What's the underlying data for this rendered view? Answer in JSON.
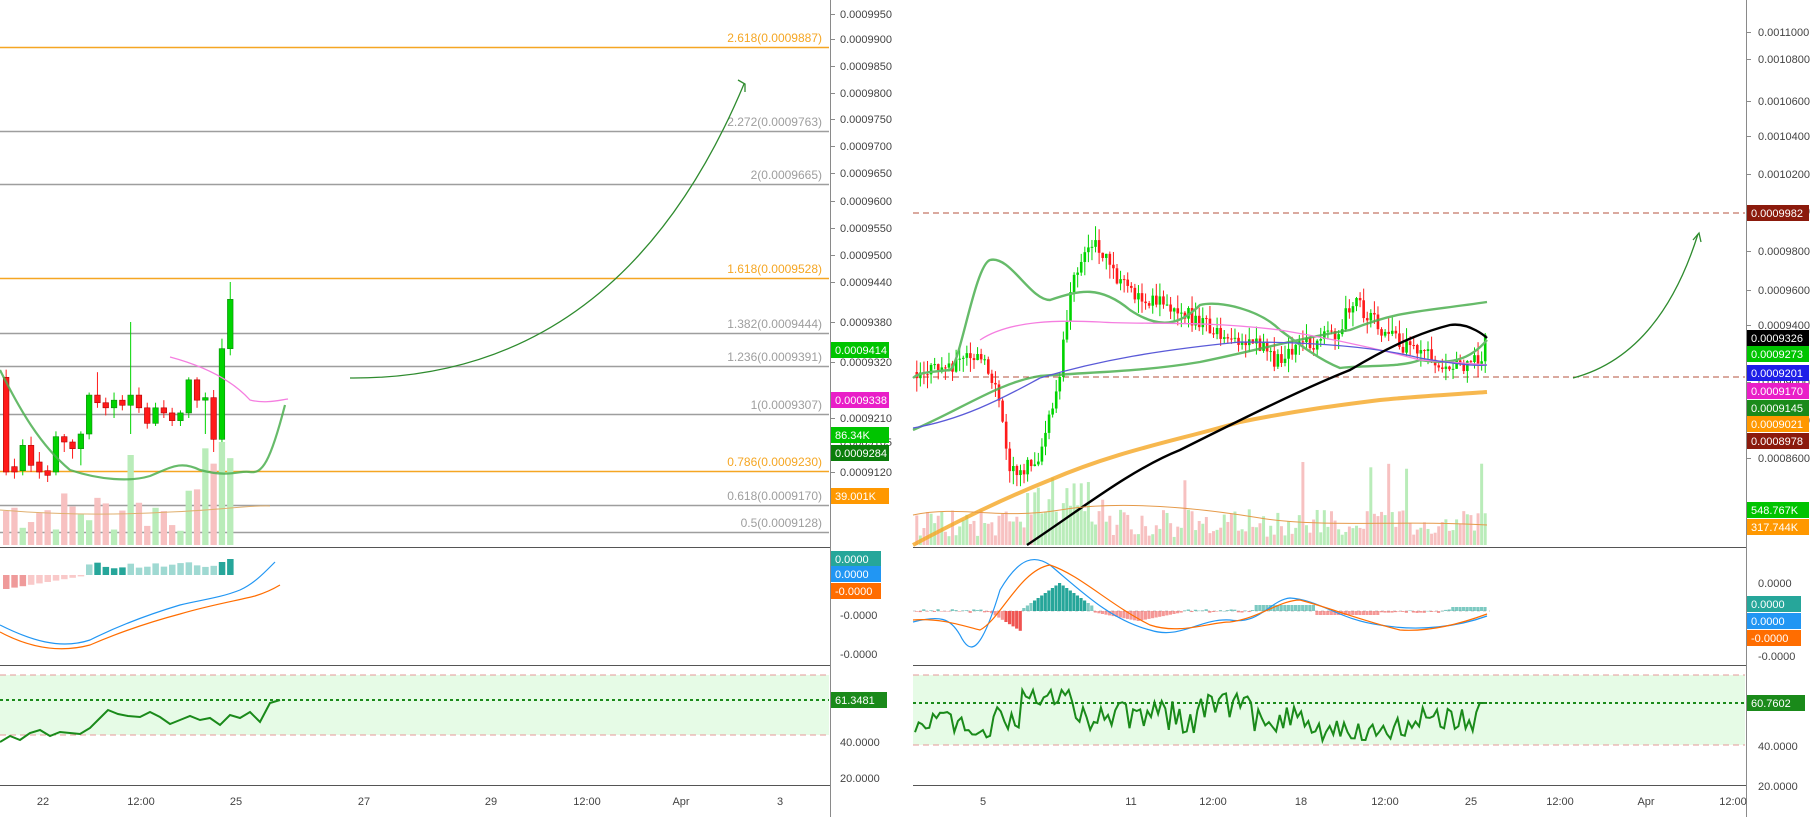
{
  "chart_data": [
    {
      "type": "candlestick",
      "panel": "left",
      "x_ticks": [
        "22",
        "12:00",
        "25",
        "27",
        "29",
        "12:00",
        "Apr",
        "3"
      ],
      "price_ticks": [
        "0.0009950",
        "0.0009900",
        "0.0009850",
        "0.0009800",
        "0.0009750",
        "0.0009700",
        "0.0009650",
        "0.0009600",
        "0.0009550",
        "0.0009500",
        "0.0009440",
        "0.0009380",
        "0.0009320",
        "0.0009210",
        "0.0009165",
        "0.0009120"
      ],
      "fib_levels": [
        {
          "label": "2.618(0.0009887)",
          "ratio": 2.618,
          "value": 0.0009887,
          "color": "#f5a623"
        },
        {
          "label": "2.272(0.0009763)",
          "ratio": 2.272,
          "value": 0.0009763,
          "color": "#9e9e9e"
        },
        {
          "label": "2(0.0009665)",
          "ratio": 2,
          "value": 0.0009665,
          "color": "#9e9e9e"
        },
        {
          "label": "1.618(0.0009528)",
          "ratio": 1.618,
          "value": 0.0009528,
          "color": "#f5a623"
        },
        {
          "label": "1.382(0.0009444)",
          "ratio": 1.382,
          "value": 0.0009444,
          "color": "#9e9e9e"
        },
        {
          "label": "1.236(0.0009391)",
          "ratio": 1.236,
          "value": 0.0009391,
          "color": "#9e9e9e"
        },
        {
          "label": "1(0.0009307)",
          "ratio": 1,
          "value": 0.0009307,
          "color": "#9e9e9e"
        },
        {
          "label": "0.786(0.0009230)",
          "ratio": 0.786,
          "value": 0.000923,
          "color": "#f5a623"
        },
        {
          "label": "0.618(0.0009170)",
          "ratio": 0.618,
          "value": 0.000917,
          "color": "#9e9e9e"
        },
        {
          "label": "0.5(0.0009128)",
          "ratio": 0.5,
          "value": 0.0009128,
          "color": "#9e9e9e"
        }
      ],
      "price_badges": [
        {
          "text": "0.0009414",
          "color": "#00c400"
        },
        {
          "text": "0.0009338",
          "color": "#e91ec8"
        },
        {
          "text": "86.34K",
          "color": "#00c400"
        },
        {
          "text": "0.0009284",
          "color": "#0a7d0a"
        },
        {
          "text": "39.001K",
          "color": "#ff9800"
        }
      ],
      "macd": {
        "ticks": [
          "-0.0000",
          "-0.0000"
        ],
        "badges": [
          {
            "text": "0.0000",
            "color": "#26a69a"
          },
          {
            "text": "0.0000",
            "color": "#2196f3"
          },
          {
            "text": "-0.0000",
            "color": "#ff6d00"
          }
        ]
      },
      "rsi": {
        "ticks": [
          "40.0000",
          "20.0000"
        ],
        "value_badge": {
          "text": "61.3481",
          "color": "#1a8a1a"
        }
      },
      "candles": [
        {
          "o": 0.000929,
          "h": 0.0009305,
          "l": 0.0009115,
          "c": 0.000912
        },
        {
          "o": 0.0009128,
          "h": 0.000914,
          "l": 0.000911,
          "c": 0.000912
        },
        {
          "o": 0.0009122,
          "h": 0.000917,
          "l": 0.0009115,
          "c": 0.000916
        },
        {
          "o": 0.000916,
          "h": 0.0009175,
          "l": 0.000912,
          "c": 0.000913
        },
        {
          "o": 0.0009135,
          "h": 0.000915,
          "l": 0.000911,
          "c": 0.000912
        },
        {
          "o": 0.0009122,
          "h": 0.000913,
          "l": 0.0009105,
          "c": 0.0009115
        },
        {
          "o": 0.000912,
          "h": 0.0009185,
          "l": 0.0009115,
          "c": 0.0009175
        },
        {
          "o": 0.0009175,
          "h": 0.000918,
          "l": 0.000915,
          "c": 0.0009165
        },
        {
          "o": 0.0009165,
          "h": 0.000917,
          "l": 0.000914,
          "c": 0.0009155
        },
        {
          "o": 0.0009155,
          "h": 0.0009185,
          "l": 0.000913,
          "c": 0.000918
        },
        {
          "o": 0.000918,
          "h": 0.000926,
          "l": 0.000917,
          "c": 0.0009255
        },
        {
          "o": 0.0009255,
          "h": 0.00093,
          "l": 0.000923,
          "c": 0.000924
        },
        {
          "o": 0.000924,
          "h": 0.000925,
          "l": 0.0009215,
          "c": 0.000923
        },
        {
          "o": 0.000923,
          "h": 0.000926,
          "l": 0.000921,
          "c": 0.0009245
        },
        {
          "o": 0.0009245,
          "h": 0.0009255,
          "l": 0.0009225,
          "c": 0.0009235
        },
        {
          "o": 0.0009235,
          "h": 0.000938,
          "l": 0.000918,
          "c": 0.0009255
        },
        {
          "o": 0.0009255,
          "h": 0.000927,
          "l": 0.000922,
          "c": 0.000923
        },
        {
          "o": 0.000923,
          "h": 0.000924,
          "l": 0.000919,
          "c": 0.00092
        },
        {
          "o": 0.00092,
          "h": 0.000924,
          "l": 0.0009195,
          "c": 0.000923
        },
        {
          "o": 0.000923,
          "h": 0.0009245,
          "l": 0.000921,
          "c": 0.000922
        },
        {
          "o": 0.000922,
          "h": 0.000923,
          "l": 0.0009195,
          "c": 0.0009205
        },
        {
          "o": 0.0009205,
          "h": 0.0009225,
          "l": 0.0009195,
          "c": 0.000922
        },
        {
          "o": 0.000922,
          "h": 0.000929,
          "l": 0.000921,
          "c": 0.0009285
        },
        {
          "o": 0.0009285,
          "h": 0.000929,
          "l": 0.000923,
          "c": 0.0009245
        },
        {
          "o": 0.0009245,
          "h": 0.000926,
          "l": 0.000918,
          "c": 0.000925
        },
        {
          "o": 0.000925,
          "h": 0.0009265,
          "l": 0.000915,
          "c": 0.000917
        },
        {
          "o": 0.000917,
          "h": 0.0009355,
          "l": 0.0009165,
          "c": 0.000934
        },
        {
          "o": 0.000934,
          "h": 0.000944,
          "l": 0.000933,
          "c": 0.0009414
        }
      ]
    },
    {
      "type": "candlestick",
      "panel": "right",
      "x_ticks": [
        "5",
        "11",
        "12:00",
        "18",
        "12:00",
        "25",
        "12:00",
        "Apr",
        "12:00"
      ],
      "price_ticks": [
        "0.0011000",
        "0.0010800",
        "0.0010600",
        "0.0010400",
        "0.0010200",
        "0.0010000",
        "0.0009800",
        "0.0009600",
        "0.0009400",
        "0.0009000",
        "0.0008750",
        "0.0008600"
      ],
      "price_badges": [
        {
          "text": "0.0009982",
          "color": "#8b1a0c"
        },
        {
          "text": "0.0009326",
          "color": "#000000"
        },
        {
          "text": "0.0009273",
          "color": "#00c400"
        },
        {
          "text": "0.0009201",
          "color": "#1e1ee8"
        },
        {
          "text": "0.0009170",
          "color": "#e91ec8"
        },
        {
          "text": "0.0009145",
          "color": "#1a8a1a"
        },
        {
          "text": "0.0009021",
          "color": "#ff9800"
        },
        {
          "text": "0.0008978",
          "color": "#8b1a0c"
        },
        {
          "text": "548.767K",
          "color": "#00c400"
        },
        {
          "text": "317.744K",
          "color": "#ff9800"
        }
      ],
      "macd": {
        "ticks": [
          "0.0000",
          "-0.0000"
        ],
        "badges": [
          {
            "text": "0.0000",
            "color": "#26a69a"
          },
          {
            "text": "0.0000",
            "color": "#2196f3"
          },
          {
            "text": "-0.0000",
            "color": "#ff6d00"
          }
        ]
      },
      "rsi": {
        "ticks": [
          "40.0000",
          "20.0000"
        ],
        "value_badge": {
          "text": "60.7602",
          "color": "#1a8a1a"
        }
      },
      "resistance": 0.0009982,
      "support": 0.0008978
    }
  ]
}
